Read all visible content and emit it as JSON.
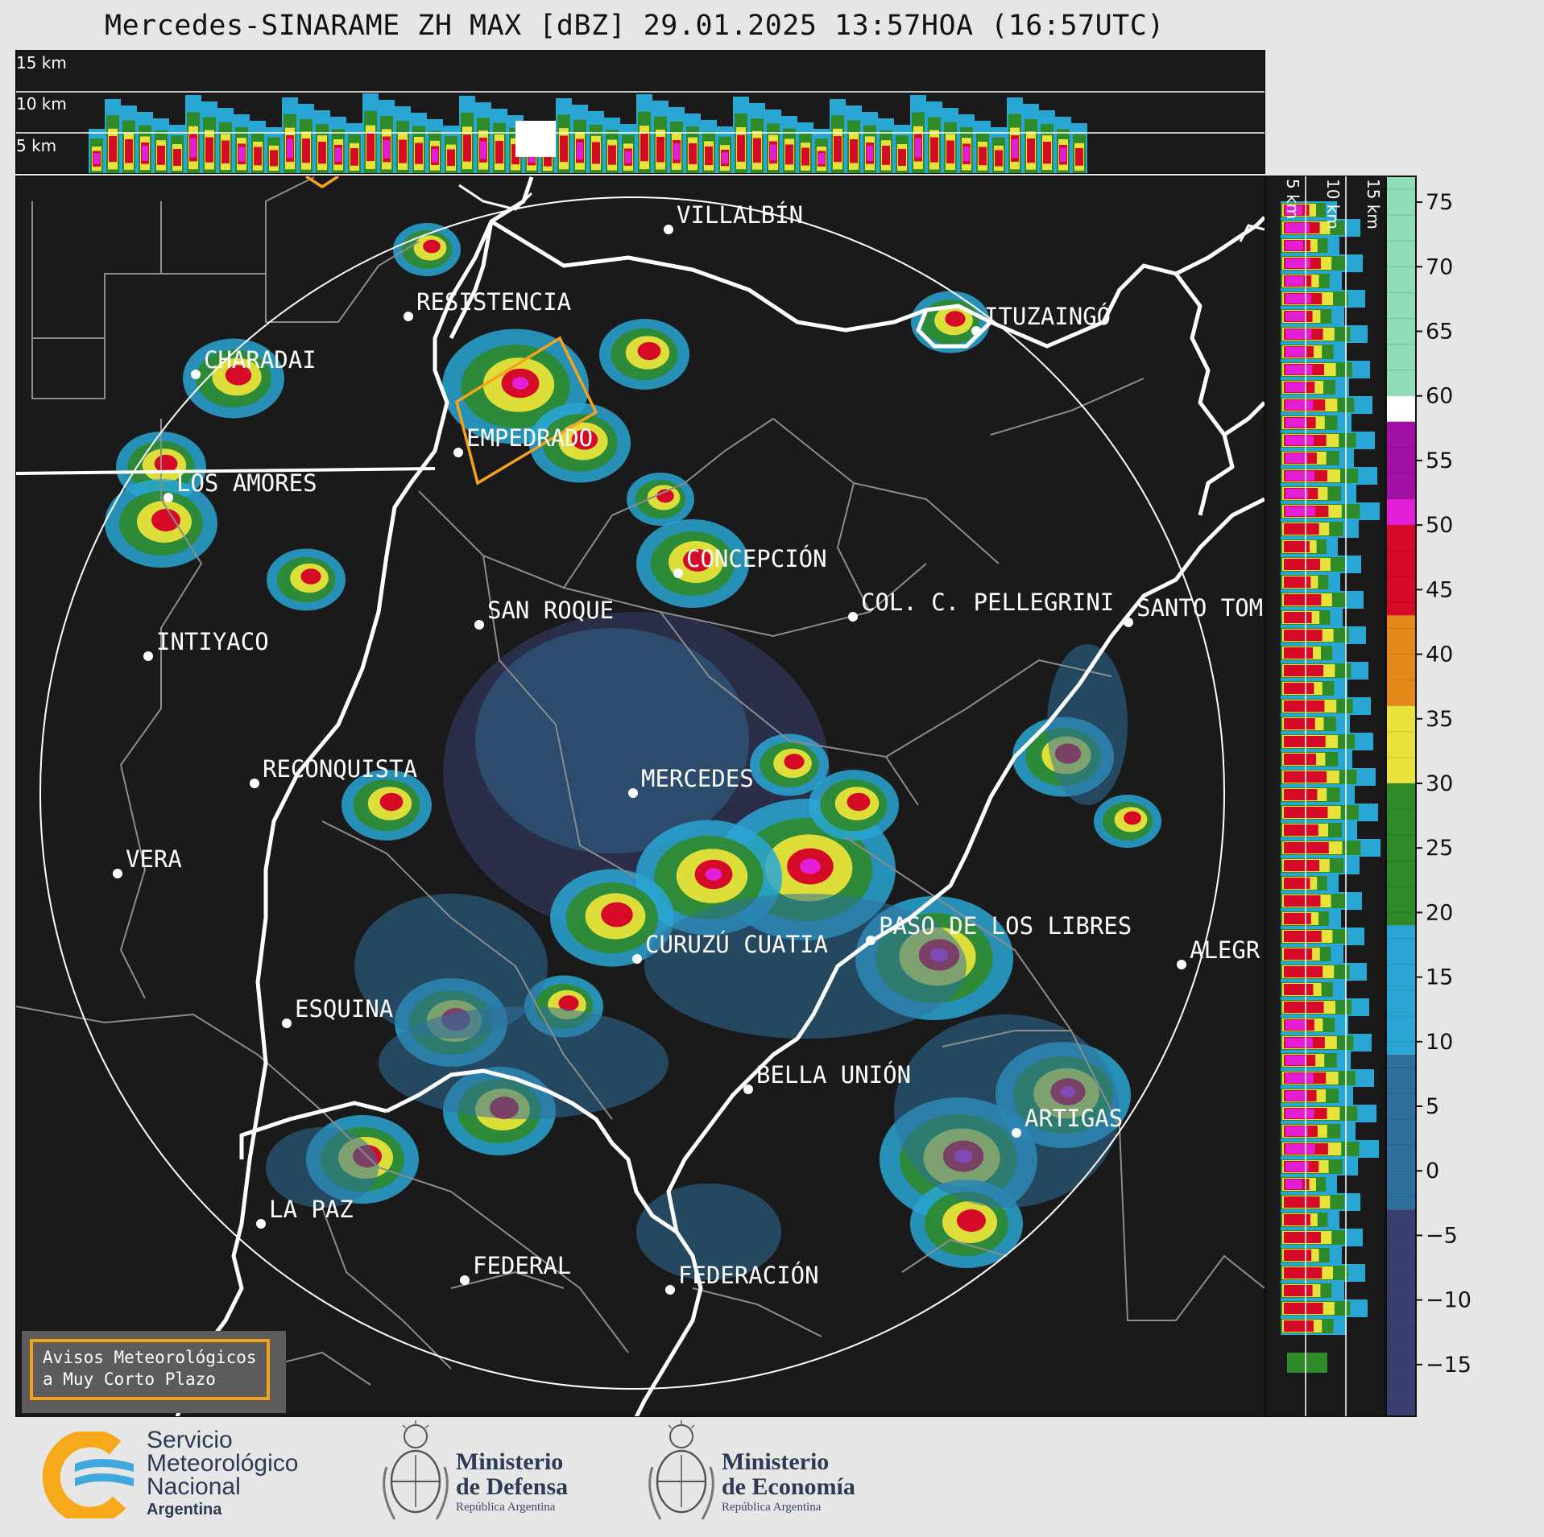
{
  "title": "Mercedes-SINARAME ZH MAX [dBZ] 29.01.2025 13:57HOA (16:57UTC)",
  "top_panel": {
    "height_labels": [
      "15 km",
      "10 km",
      "5 km"
    ]
  },
  "side_panel": {
    "height_labels": [
      "5 km",
      "10 km",
      "15 km"
    ]
  },
  "cities": [
    {
      "name": "VILLALBÍN"
    },
    {
      "name": "RESISTENCIA"
    },
    {
      "name": "CHARADAI"
    },
    {
      "name": "ITUZAINGÓ"
    },
    {
      "name": "EMPEDRADO"
    },
    {
      "name": "LOS AMORES"
    },
    {
      "name": "CONCEPCIÓN"
    },
    {
      "name": "SAN ROQUE"
    },
    {
      "name": "COL. C. PELLEGRINI"
    },
    {
      "name": "SANTO TOM"
    },
    {
      "name": "INTIYACO"
    },
    {
      "name": "RECONQUISTA"
    },
    {
      "name": "MERCEDES"
    },
    {
      "name": "VERA"
    },
    {
      "name": "PASO DE LOS LIBRES"
    },
    {
      "name": "CURUZÚ CUATIA"
    },
    {
      "name": "ALEGR"
    },
    {
      "name": "ESQUINA"
    },
    {
      "name": "BELLA UNIÓN"
    },
    {
      "name": "ARTIGAS"
    },
    {
      "name": "LA PAZ"
    },
    {
      "name": "FEDERAL"
    },
    {
      "name": "FEDERACIÓN"
    }
  ],
  "colorbar": {
    "unit": "dBZ",
    "ticks": [
      "75",
      "70",
      "65",
      "60",
      "55",
      "50",
      "45",
      "40",
      "35",
      "30",
      "25",
      "20",
      "15",
      "10",
      "5",
      "0",
      "−5",
      "−10",
      "−15"
    ],
    "colors": {
      "pastel": "#8fdcb8",
      "white": "#ffffff",
      "purple": "#a20fa3",
      "magenta": "#e21ed6",
      "red": "#d40a26",
      "orange": "#e48a1a",
      "yellow": "#e8e33a",
      "green": "#2f8a2a",
      "cyan": "#2aa6d4",
      "blue": "#2f6f9c",
      "navy": "#3b3f70"
    }
  },
  "notice": {
    "line1": "Avisos Meteorológicos",
    "line2": "a Muy Corto Plazo"
  },
  "logos": {
    "smn": {
      "line1": "Servicio",
      "line2": "Meteorológico",
      "line3": "Nacional",
      "country": "Argentina"
    },
    "defensa": {
      "line1": "Ministerio",
      "line2": "de Defensa",
      "line3": "República Argentina"
    },
    "economia": {
      "line1": "Ministerio",
      "line2": "de Economía",
      "line3": "República Argentina"
    }
  },
  "accent_colors": {
    "warning_box": "#f4a31a",
    "map_bg": "#1a1a1a",
    "rivers": "#ffffff",
    "borders": "#8a8a8a"
  }
}
